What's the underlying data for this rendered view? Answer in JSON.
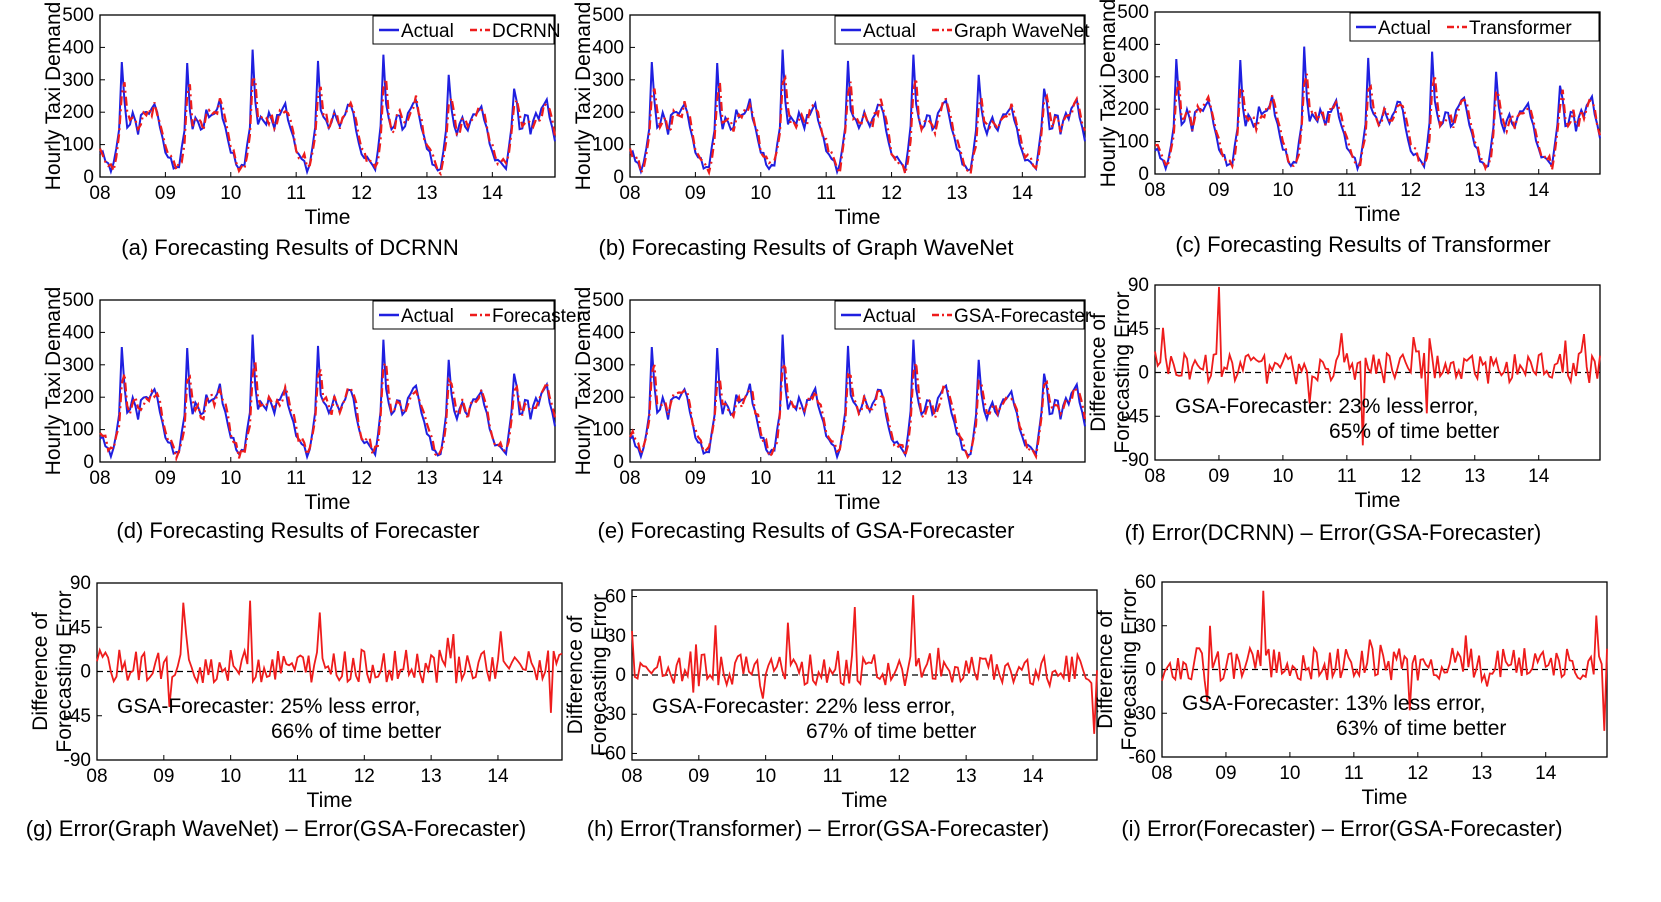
{
  "chart_data": [
    {
      "id": "a",
      "type": "line",
      "kind": "forecast",
      "caption": "(a) Forecasting Results of DCRNN",
      "xlabel": "Time",
      "ylabel": "Hourly Taxi Demand",
      "xticks": [
        "08",
        "09",
        "10",
        "11",
        "12",
        "13",
        "14"
      ],
      "yticks": [
        "0",
        "100",
        "200",
        "300",
        "400",
        "500"
      ],
      "ylim": [
        0,
        500
      ],
      "legend": [
        "Actual",
        "DCRNN"
      ],
      "series": [
        {
          "name": "Actual",
          "color": "#1f1fe0",
          "style": "solid",
          "seed": 3
        },
        {
          "name": "DCRNN",
          "color": "#ee1c1c",
          "style": "dashdot",
          "seed": 11
        }
      ]
    },
    {
      "id": "b",
      "type": "line",
      "kind": "forecast",
      "caption": "(b) Forecasting Results of Graph WaveNet",
      "xlabel": "Time",
      "ylabel": "Hourly Taxi Demand",
      "xticks": [
        "08",
        "09",
        "10",
        "11",
        "12",
        "13",
        "14"
      ],
      "yticks": [
        "0",
        "100",
        "200",
        "300",
        "400",
        "500"
      ],
      "ylim": [
        0,
        500
      ],
      "legend": [
        "Actual",
        "Graph WaveNet"
      ],
      "series": [
        {
          "name": "Actual",
          "color": "#1f1fe0",
          "style": "solid",
          "seed": 3
        },
        {
          "name": "Graph WaveNet",
          "color": "#ee1c1c",
          "style": "dashdot",
          "seed": 17
        }
      ]
    },
    {
      "id": "c",
      "type": "line",
      "kind": "forecast",
      "caption": "(c) Forecasting Results of Transformer",
      "xlabel": "Time",
      "ylabel": "Hourly Taxi Demand",
      "xticks": [
        "08",
        "09",
        "10",
        "11",
        "12",
        "13",
        "14"
      ],
      "yticks": [
        "0",
        "100",
        "200",
        "300",
        "400",
        "500"
      ],
      "ylim": [
        0,
        500
      ],
      "legend": [
        "Actual",
        "Transformer"
      ],
      "series": [
        {
          "name": "Actual",
          "color": "#1f1fe0",
          "style": "solid",
          "seed": 3
        },
        {
          "name": "Transformer",
          "color": "#ee1c1c",
          "style": "dashdot",
          "seed": 23
        }
      ]
    },
    {
      "id": "d",
      "type": "line",
      "kind": "forecast",
      "caption": "(d) Forecasting Results of Forecaster",
      "xlabel": "Time",
      "ylabel": "Hourly Taxi Demand",
      "xticks": [
        "08",
        "09",
        "10",
        "11",
        "12",
        "13",
        "14"
      ],
      "yticks": [
        "0",
        "100",
        "200",
        "300",
        "400",
        "500"
      ],
      "ylim": [
        0,
        500
      ],
      "legend": [
        "Actual",
        "Forecaster"
      ],
      "series": [
        {
          "name": "Actual",
          "color": "#1f1fe0",
          "style": "solid",
          "seed": 3
        },
        {
          "name": "Forecaster",
          "color": "#ee1c1c",
          "style": "dashdot",
          "seed": 29
        }
      ]
    },
    {
      "id": "e",
      "type": "line",
      "kind": "forecast",
      "caption": "(e) Forecasting Results of GSA-Forecaster",
      "xlabel": "Time",
      "ylabel": "Hourly Taxi Demand",
      "xticks": [
        "08",
        "09",
        "10",
        "11",
        "12",
        "13",
        "14"
      ],
      "yticks": [
        "0",
        "100",
        "200",
        "300",
        "400",
        "500"
      ],
      "ylim": [
        0,
        500
      ],
      "legend": [
        "Actual",
        "GSA-Forecaster"
      ],
      "series": [
        {
          "name": "Actual",
          "color": "#1f1fe0",
          "style": "solid",
          "seed": 3
        },
        {
          "name": "GSA-Forecaster",
          "color": "#ee1c1c",
          "style": "dashdot",
          "seed": 37
        }
      ]
    },
    {
      "id": "f",
      "type": "line",
      "kind": "difference",
      "caption": "(f) Error(DCRNN) – Error(GSA-Forecaster)",
      "xlabel": "Time",
      "ylabel": [
        "Difference of",
        "Forecasting Error"
      ],
      "xticks": [
        "08",
        "09",
        "10",
        "11",
        "12",
        "13",
        "14"
      ],
      "yticks": [
        "-90",
        "-45",
        "0",
        "45",
        "90"
      ],
      "ylim": [
        -90,
        90
      ],
      "annotation": [
        "GSA-Forecaster: 23% less error,",
        "65% of time better"
      ],
      "summary": {
        "less_error_pct": 23,
        "time_better_pct": 65
      },
      "series": [
        {
          "name": "Difference",
          "color": "#ee1c1c",
          "style": "solid",
          "seed": 41,
          "spikes": [
            [
              24,
              88
            ],
            [
              3,
              46
            ],
            [
              78,
              -75
            ],
            [
              102,
              -42
            ],
            [
              58,
              -32
            ]
          ]
        }
      ]
    },
    {
      "id": "g",
      "type": "line",
      "kind": "difference",
      "caption": "(g) Error(Graph WaveNet) – Error(GSA-Forecaster)",
      "xlabel": "Time",
      "ylabel": [
        "Difference of",
        "Forecasting Error"
      ],
      "xticks": [
        "08",
        "09",
        "10",
        "11",
        "12",
        "13",
        "14"
      ],
      "yticks": [
        "-90",
        "-45",
        "0",
        "45",
        "90"
      ],
      "ylim": [
        -90,
        90
      ],
      "annotation": [
        "GSA-Forecaster: 25% less error,",
        "66% of time better"
      ],
      "summary": {
        "less_error_pct": 25,
        "time_better_pct": 66
      },
      "series": [
        {
          "name": "Difference",
          "color": "#ee1c1c",
          "style": "solid",
          "seed": 43,
          "spikes": [
            [
              31,
              70
            ],
            [
              55,
              72
            ],
            [
              80,
              60
            ],
            [
              128,
              38
            ],
            [
              26,
              -36
            ],
            [
              163,
              -42
            ]
          ]
        }
      ]
    },
    {
      "id": "h",
      "type": "line",
      "kind": "difference",
      "caption": "(h) Error(Transformer) – Error(GSA-Forecaster)",
      "xlabel": "Time",
      "ylabel": [
        "Difference of",
        "Forecasting Error"
      ],
      "xticks": [
        "08",
        "09",
        "10",
        "11",
        "12",
        "13",
        "14"
      ],
      "yticks": [
        "-60",
        "-30",
        "0",
        "30",
        "60"
      ],
      "ylim": [
        -65,
        65
      ],
      "annotation": [
        "GSA-Forecaster: 22% less error,",
        "67% of time better"
      ],
      "summary": {
        "less_error_pct": 22,
        "time_better_pct": 67
      },
      "series": [
        {
          "name": "Difference",
          "color": "#ee1c1c",
          "style": "solid",
          "seed": 47,
          "spikes": [
            [
              101,
              61
            ],
            [
              80,
              52
            ],
            [
              56,
              40
            ],
            [
              30,
              38
            ],
            [
              47,
              -18
            ],
            [
              166,
              -45
            ]
          ]
        }
      ]
    },
    {
      "id": "i",
      "type": "line",
      "kind": "difference",
      "caption": "(i) Error(Forecaster) – Error(GSA-Forecaster)",
      "xlabel": "Time",
      "ylabel": [
        "Difference of",
        "Forecasting Error"
      ],
      "xticks": [
        "08",
        "09",
        "10",
        "11",
        "12",
        "13",
        "14"
      ],
      "yticks": [
        "-60",
        "-30",
        "0",
        "30",
        "60"
      ],
      "ylim": [
        -60,
        60
      ],
      "annotation": [
        "GSA-Forecaster: 13% less error,",
        "63% of time better"
      ],
      "summary": {
        "less_error_pct": 13,
        "time_better_pct": 63
      },
      "series": [
        {
          "name": "Difference",
          "color": "#ee1c1c",
          "style": "solid",
          "seed": 53,
          "spikes": [
            [
              38,
              54
            ],
            [
              163,
              37
            ],
            [
              18,
              30
            ],
            [
              17,
              -22
            ],
            [
              93,
              -28
            ],
            [
              166,
              -42
            ]
          ]
        }
      ]
    }
  ]
}
